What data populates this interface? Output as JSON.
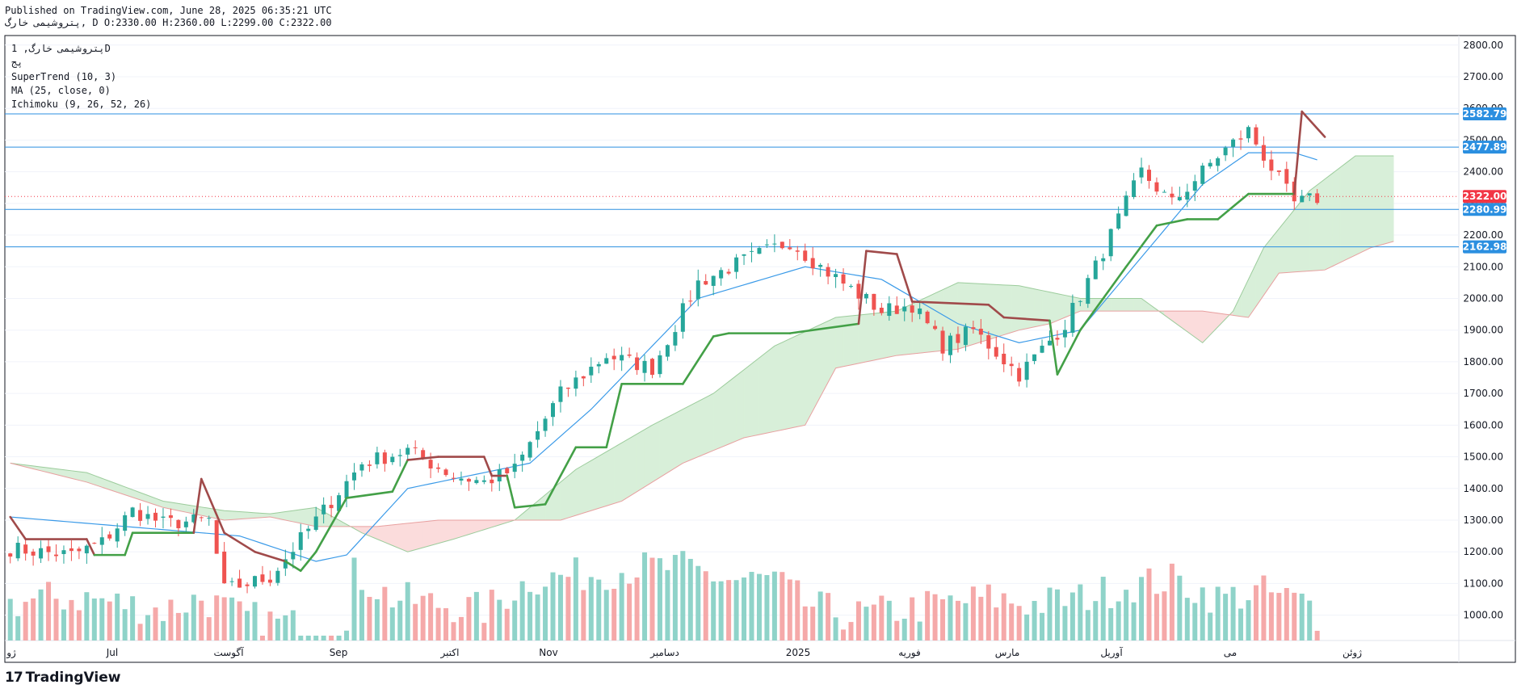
{
  "header": {
    "published": "Published on TradingView.com, June 28, 2025 06:35:21 UTC",
    "symbol_line": "پتروشیمی خارگ, D O:2330.00 H:2360.00 L:2299.00 C:2322.00"
  },
  "legend": {
    "title": "پتروشیمی خارگ, 1D",
    "exchange": "پج",
    "supertrend": "SuperTrend (10, 3)",
    "ma": "MA (25, close, 0)",
    "ichimoku": "Ichimoku (9, 26, 52, 26)"
  },
  "footer": {
    "brand": "TradingView",
    "logo": "17"
  },
  "colors": {
    "up": "#26a69a",
    "down": "#ef5350",
    "up_vol": "#8fd3c9",
    "down_vol": "#f5a9a9",
    "supertrend_up": "#43a047",
    "supertrend_down": "#a04a4a",
    "ma": "#3a9ae8",
    "hline": "#2b8fe0",
    "cloud_bull": "#d8efd9",
    "cloud_bear": "#fbdcdc",
    "last_price": "#f23645"
  },
  "chart_data": {
    "type": "candlestick",
    "y_ticks": [
      1000,
      1100,
      1200,
      1300,
      1400,
      1500,
      1600,
      1700,
      1800,
      1900,
      2000,
      2100,
      2200,
      2300,
      2400,
      2500,
      2600,
      2700,
      2800
    ],
    "ylim": [
      920,
      2830
    ],
    "x_labels": [
      "ژو",
      "Jul",
      "آگوست",
      "Sep",
      "اکتبر",
      "Nov",
      "دسامبر",
      "2025",
      "فوریه",
      "مارس",
      "آوریل",
      "می",
      "ژوئن"
    ],
    "price_levels": [
      {
        "label": "2582.79",
        "value": 2582.79
      },
      {
        "label": "2477.89",
        "value": 2477.89
      },
      {
        "label": "2280.99",
        "value": 2280.99
      },
      {
        "label": "2162.98",
        "value": 2162.98
      }
    ],
    "last_price": {
      "label": "2322.00",
      "value": 2322
    },
    "waypoints": {
      "candles_close": [
        [
          0,
          1210
        ],
        [
          8,
          1190
        ],
        [
          12,
          1230
        ],
        [
          16,
          1330
        ],
        [
          20,
          1290
        ],
        [
          26,
          1300
        ],
        [
          28,
          1080
        ],
        [
          34,
          1120
        ],
        [
          40,
          1300
        ],
        [
          46,
          1480
        ],
        [
          52,
          1520
        ],
        [
          58,
          1440
        ],
        [
          62,
          1420
        ],
        [
          66,
          1460
        ],
        [
          72,
          1700
        ],
        [
          78,
          1820
        ],
        [
          84,
          1780
        ],
        [
          90,
          2050
        ],
        [
          96,
          2120
        ],
        [
          102,
          2180
        ],
        [
          106,
          2100
        ],
        [
          110,
          2030
        ],
        [
          114,
          1960
        ],
        [
          118,
          1980
        ],
        [
          122,
          1850
        ],
        [
          126,
          1900
        ],
        [
          132,
          1760
        ],
        [
          138,
          1920
        ],
        [
          142,
          2100
        ],
        [
          148,
          2400
        ],
        [
          152,
          2300
        ],
        [
          158,
          2450
        ],
        [
          162,
          2530
        ],
        [
          164,
          2450
        ],
        [
          168,
          2300
        ],
        [
          172,
          2322
        ]
      ],
      "ma": [
        [
          0,
          1310
        ],
        [
          20,
          1270
        ],
        [
          30,
          1250
        ],
        [
          40,
          1170
        ],
        [
          44,
          1190
        ],
        [
          52,
          1400
        ],
        [
          60,
          1440
        ],
        [
          68,
          1480
        ],
        [
          76,
          1650
        ],
        [
          90,
          2000
        ],
        [
          104,
          2100
        ],
        [
          114,
          2060
        ],
        [
          124,
          1920
        ],
        [
          132,
          1860
        ],
        [
          140,
          1900
        ],
        [
          148,
          2130
        ],
        [
          156,
          2360
        ],
        [
          162,
          2460
        ],
        [
          168,
          2460
        ],
        [
          172,
          2430
        ]
      ],
      "supertrend": [
        [
          0,
          1310
        ],
        [
          2,
          1240
        ],
        [
          10,
          1240
        ],
        [
          11,
          1190
        ],
        [
          15,
          1190
        ],
        [
          16,
          1260
        ],
        [
          24,
          1260
        ],
        [
          25,
          1430
        ],
        [
          28,
          1260
        ],
        [
          32,
          1200
        ],
        [
          36,
          1170
        ],
        [
          38,
          1140
        ],
        [
          40,
          1200
        ],
        [
          44,
          1370
        ],
        [
          50,
          1390
        ],
        [
          52,
          1490
        ],
        [
          56,
          1500
        ],
        [
          62,
          1500
        ],
        [
          63,
          1440
        ],
        [
          65,
          1440
        ],
        [
          66,
          1340
        ],
        [
          70,
          1350
        ],
        [
          74,
          1530
        ],
        [
          78,
          1530
        ],
        [
          80,
          1730
        ],
        [
          88,
          1730
        ],
        [
          92,
          1880
        ],
        [
          94,
          1890
        ],
        [
          102,
          1890
        ],
        [
          111,
          1920
        ],
        [
          112,
          2150
        ],
        [
          116,
          2140
        ],
        [
          118,
          1990
        ],
        [
          128,
          1980
        ],
        [
          130,
          1940
        ],
        [
          136,
          1930
        ],
        [
          137,
          1760
        ],
        [
          140,
          1900
        ],
        [
          146,
          2100
        ],
        [
          150,
          2230
        ],
        [
          154,
          2250
        ],
        [
          158,
          2250
        ],
        [
          162,
          2330
        ],
        [
          168,
          2330
        ],
        [
          169,
          2590
        ],
        [
          172,
          2510
        ]
      ],
      "cloud_a": [
        [
          0,
          1480
        ],
        [
          10,
          1450
        ],
        [
          20,
          1360
        ],
        [
          28,
          1330
        ],
        [
          34,
          1320
        ],
        [
          40,
          1340
        ],
        [
          46,
          1260
        ],
        [
          52,
          1200
        ],
        [
          58,
          1240
        ],
        [
          66,
          1300
        ],
        [
          74,
          1460
        ],
        [
          84,
          1600
        ],
        [
          92,
          1700
        ],
        [
          100,
          1850
        ],
        [
          108,
          1940
        ],
        [
          116,
          1960
        ],
        [
          124,
          2050
        ],
        [
          132,
          2040
        ],
        [
          140,
          2000
        ],
        [
          148,
          2000
        ],
        [
          156,
          1860
        ],
        [
          160,
          1960
        ],
        [
          164,
          2160
        ],
        [
          170,
          2340
        ],
        [
          176,
          2450
        ],
        [
          181,
          2450
        ]
      ],
      "cloud_b": [
        [
          0,
          1480
        ],
        [
          10,
          1420
        ],
        [
          20,
          1340
        ],
        [
          28,
          1300
        ],
        [
          34,
          1310
        ],
        [
          40,
          1280
        ],
        [
          48,
          1280
        ],
        [
          56,
          1300
        ],
        [
          64,
          1300
        ],
        [
          72,
          1300
        ],
        [
          80,
          1360
        ],
        [
          88,
          1480
        ],
        [
          96,
          1560
        ],
        [
          104,
          1600
        ],
        [
          108,
          1780
        ],
        [
          116,
          1820
        ],
        [
          124,
          1840
        ],
        [
          132,
          1900
        ],
        [
          136,
          1920
        ],
        [
          140,
          1960
        ],
        [
          148,
          1960
        ],
        [
          156,
          1960
        ],
        [
          162,
          1940
        ],
        [
          166,
          2080
        ],
        [
          172,
          2090
        ],
        [
          178,
          2160
        ],
        [
          181,
          2180
        ]
      ],
      "volume": [
        [
          0,
          0.3
        ],
        [
          5,
          0.35
        ],
        [
          10,
          0.35
        ],
        [
          15,
          0.3
        ],
        [
          20,
          0.25
        ],
        [
          25,
          0.35
        ],
        [
          30,
          0.2
        ],
        [
          35,
          0.15
        ],
        [
          40,
          0.1
        ],
        [
          44,
          0.05
        ],
        [
          45,
          0.55
        ],
        [
          50,
          0.35
        ],
        [
          56,
          0.3
        ],
        [
          62,
          0.25
        ],
        [
          68,
          0.5
        ],
        [
          76,
          0.55
        ],
        [
          82,
          0.6
        ],
        [
          88,
          0.6
        ],
        [
          94,
          0.5
        ],
        [
          100,
          0.5
        ],
        [
          104,
          0.3
        ],
        [
          110,
          0.2
        ],
        [
          116,
          0.25
        ],
        [
          122,
          0.3
        ],
        [
          128,
          0.35
        ],
        [
          134,
          0.3
        ],
        [
          140,
          0.35
        ],
        [
          146,
          0.45
        ],
        [
          152,
          0.5
        ],
        [
          158,
          0.35
        ],
        [
          164,
          0.4
        ],
        [
          170,
          0.3
        ],
        [
          172,
          0.1
        ]
      ]
    }
  }
}
